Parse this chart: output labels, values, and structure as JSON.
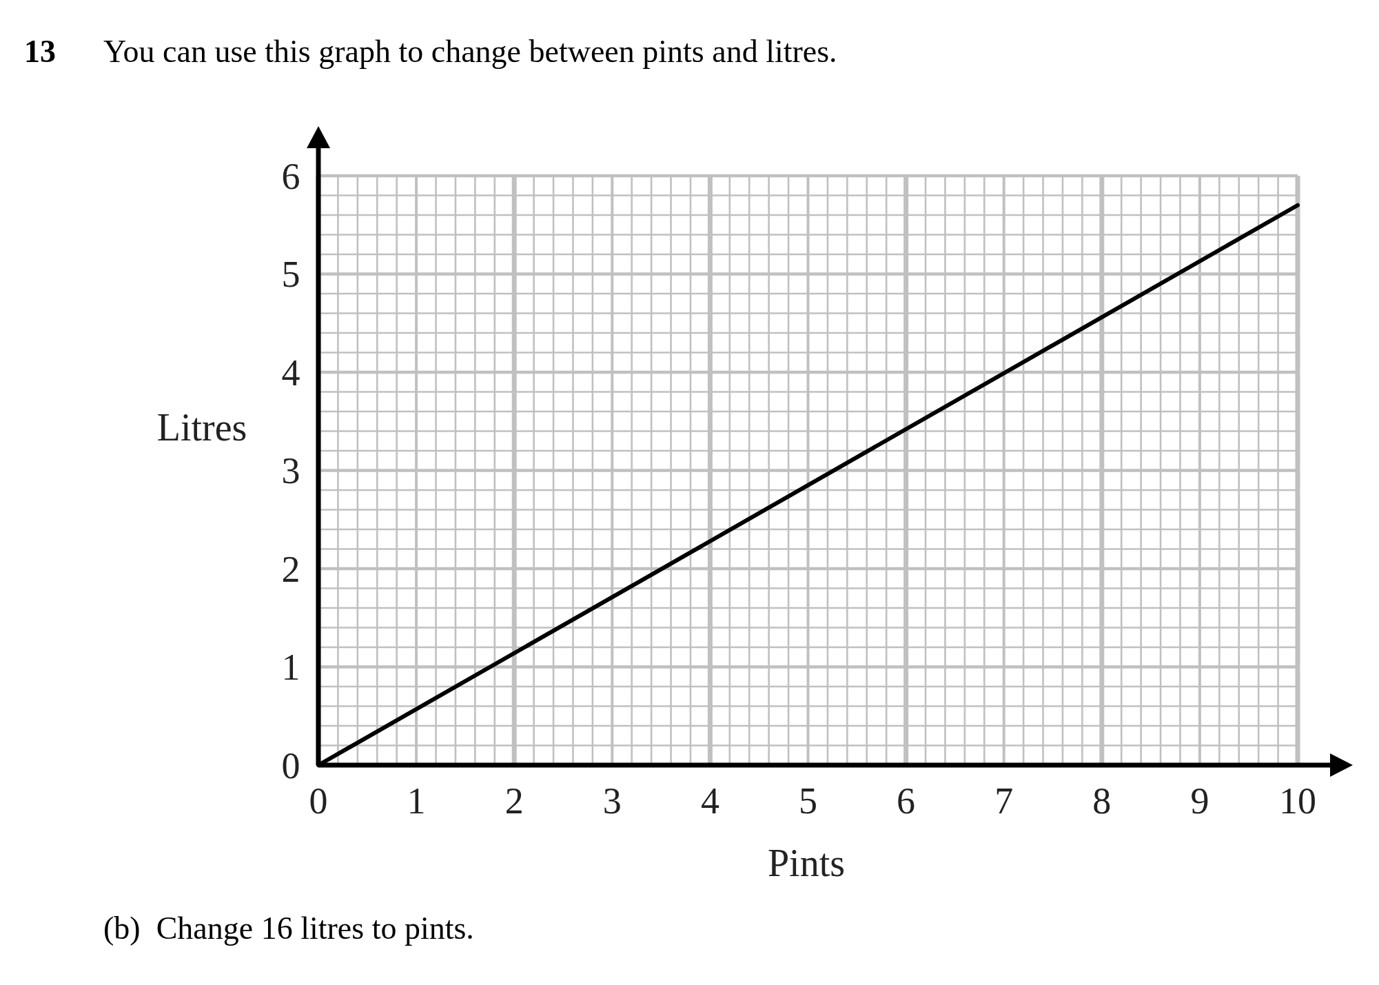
{
  "chart_data": {
    "type": "line",
    "title": "You can use this graph to change between pints and litres.",
    "xlabel": "Pints",
    "ylabel": "Litres",
    "annotations": [
      "13",
      "(b)  Change 16 litres to pints."
    ],
    "x": [
      0,
      10
    ],
    "series": [
      {
        "color": "#000000",
        "values": [
          0,
          5.7
        ]
      }
    ],
    "xlim": [
      0,
      10
    ],
    "ylim": [
      0,
      6
    ],
    "xticks": [
      0,
      1,
      2,
      3,
      4,
      5,
      6,
      7,
      8,
      9,
      10
    ],
    "yticks": [
      0,
      1,
      2,
      3,
      4,
      5,
      6
    ],
    "grid": true
  }
}
